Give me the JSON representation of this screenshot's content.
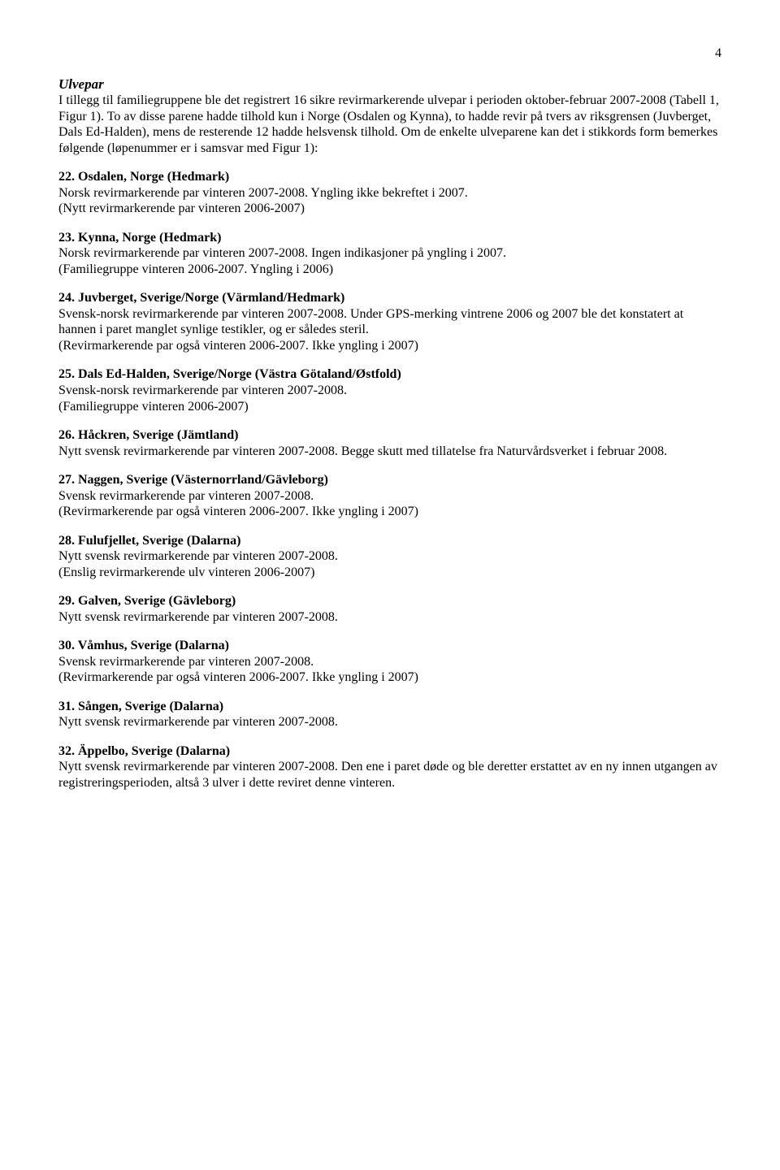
{
  "pageNumber": "4",
  "sectionTitle": "Ulvepar",
  "intro": "I tillegg til familiegruppene ble det registrert 16 sikre revirmarkerende ulvepar i perioden oktober-februar 2007-2008 (Tabell 1, Figur 1). To av disse parene hadde tilhold kun i Norge (Osdalen og Kynna), to hadde revir på tvers av riksgrensen (Juvberget, Dals Ed-Halden), mens de resterende 12 hadde helsvensk tilhold. Om de enkelte ulveparene kan det i stikkords form bemerkes følgende (løpenummer er i samsvar med Figur 1):",
  "entries": [
    {
      "title": "22. Osdalen, Norge (Hedmark)",
      "body": "Norsk revirmarkerende par vinteren 2007-2008. Yngling ikke bekreftet i 2007.\n(Nytt revirmarkerende par vinteren 2006-2007)"
    },
    {
      "title": "23. Kynna, Norge (Hedmark)",
      "body": "Norsk revirmarkerende par vinteren 2007-2008. Ingen indikasjoner på yngling i 2007.\n(Familiegruppe vinteren 2006-2007. Yngling i 2006)"
    },
    {
      "title": "24. Juvberget, Sverige/Norge (Värmland/Hedmark)",
      "body": "Svensk-norsk revirmarkerende par vinteren 2007-2008. Under GPS-merking vintrene 2006 og 2007 ble det konstatert at hannen i paret manglet synlige testikler, og er således steril.\n(Revirmarkerende par også vinteren 2006-2007. Ikke yngling i 2007)"
    },
    {
      "title": "25. Dals Ed-Halden, Sverige/Norge (Västra Götaland/Østfold)",
      "body": "Svensk-norsk revirmarkerende par vinteren 2007-2008.\n(Familiegruppe vinteren 2006-2007)"
    },
    {
      "title": "26. Håckren, Sverige (Jämtland)",
      "body": "Nytt svensk revirmarkerende par vinteren 2007-2008. Begge skutt med tillatelse fra Naturvårdsverket i februar 2008."
    },
    {
      "title": "27. Naggen, Sverige (Västernorrland/Gävleborg)",
      "body": "Svensk revirmarkerende par vinteren 2007-2008.\n(Revirmarkerende par også vinteren 2006-2007. Ikke yngling i 2007)"
    },
    {
      "title": "28. Fulufjellet, Sverige (Dalarna)",
      "body": "Nytt svensk revirmarkerende par vinteren 2007-2008.\n(Enslig revirmarkerende ulv vinteren 2006-2007)"
    },
    {
      "title": "29. Galven, Sverige (Gävleborg)",
      "body": "Nytt svensk revirmarkerende par vinteren 2007-2008."
    },
    {
      "title": "30. Våmhus, Sverige (Dalarna)",
      "body": "Svensk revirmarkerende par vinteren 2007-2008.\n(Revirmarkerende par også vinteren 2006-2007. Ikke yngling i 2007)"
    },
    {
      "title": "31. Sången, Sverige (Dalarna)",
      "body": "Nytt svensk revirmarkerende par vinteren 2007-2008."
    },
    {
      "title": "32. Äppelbo, Sverige (Dalarna)",
      "body": "Nytt svensk revirmarkerende par vinteren 2007-2008. Den ene i paret døde og ble deretter erstattet av en ny innen utgangen av registreringsperioden, altså 3 ulver i dette reviret denne vinteren."
    }
  ]
}
